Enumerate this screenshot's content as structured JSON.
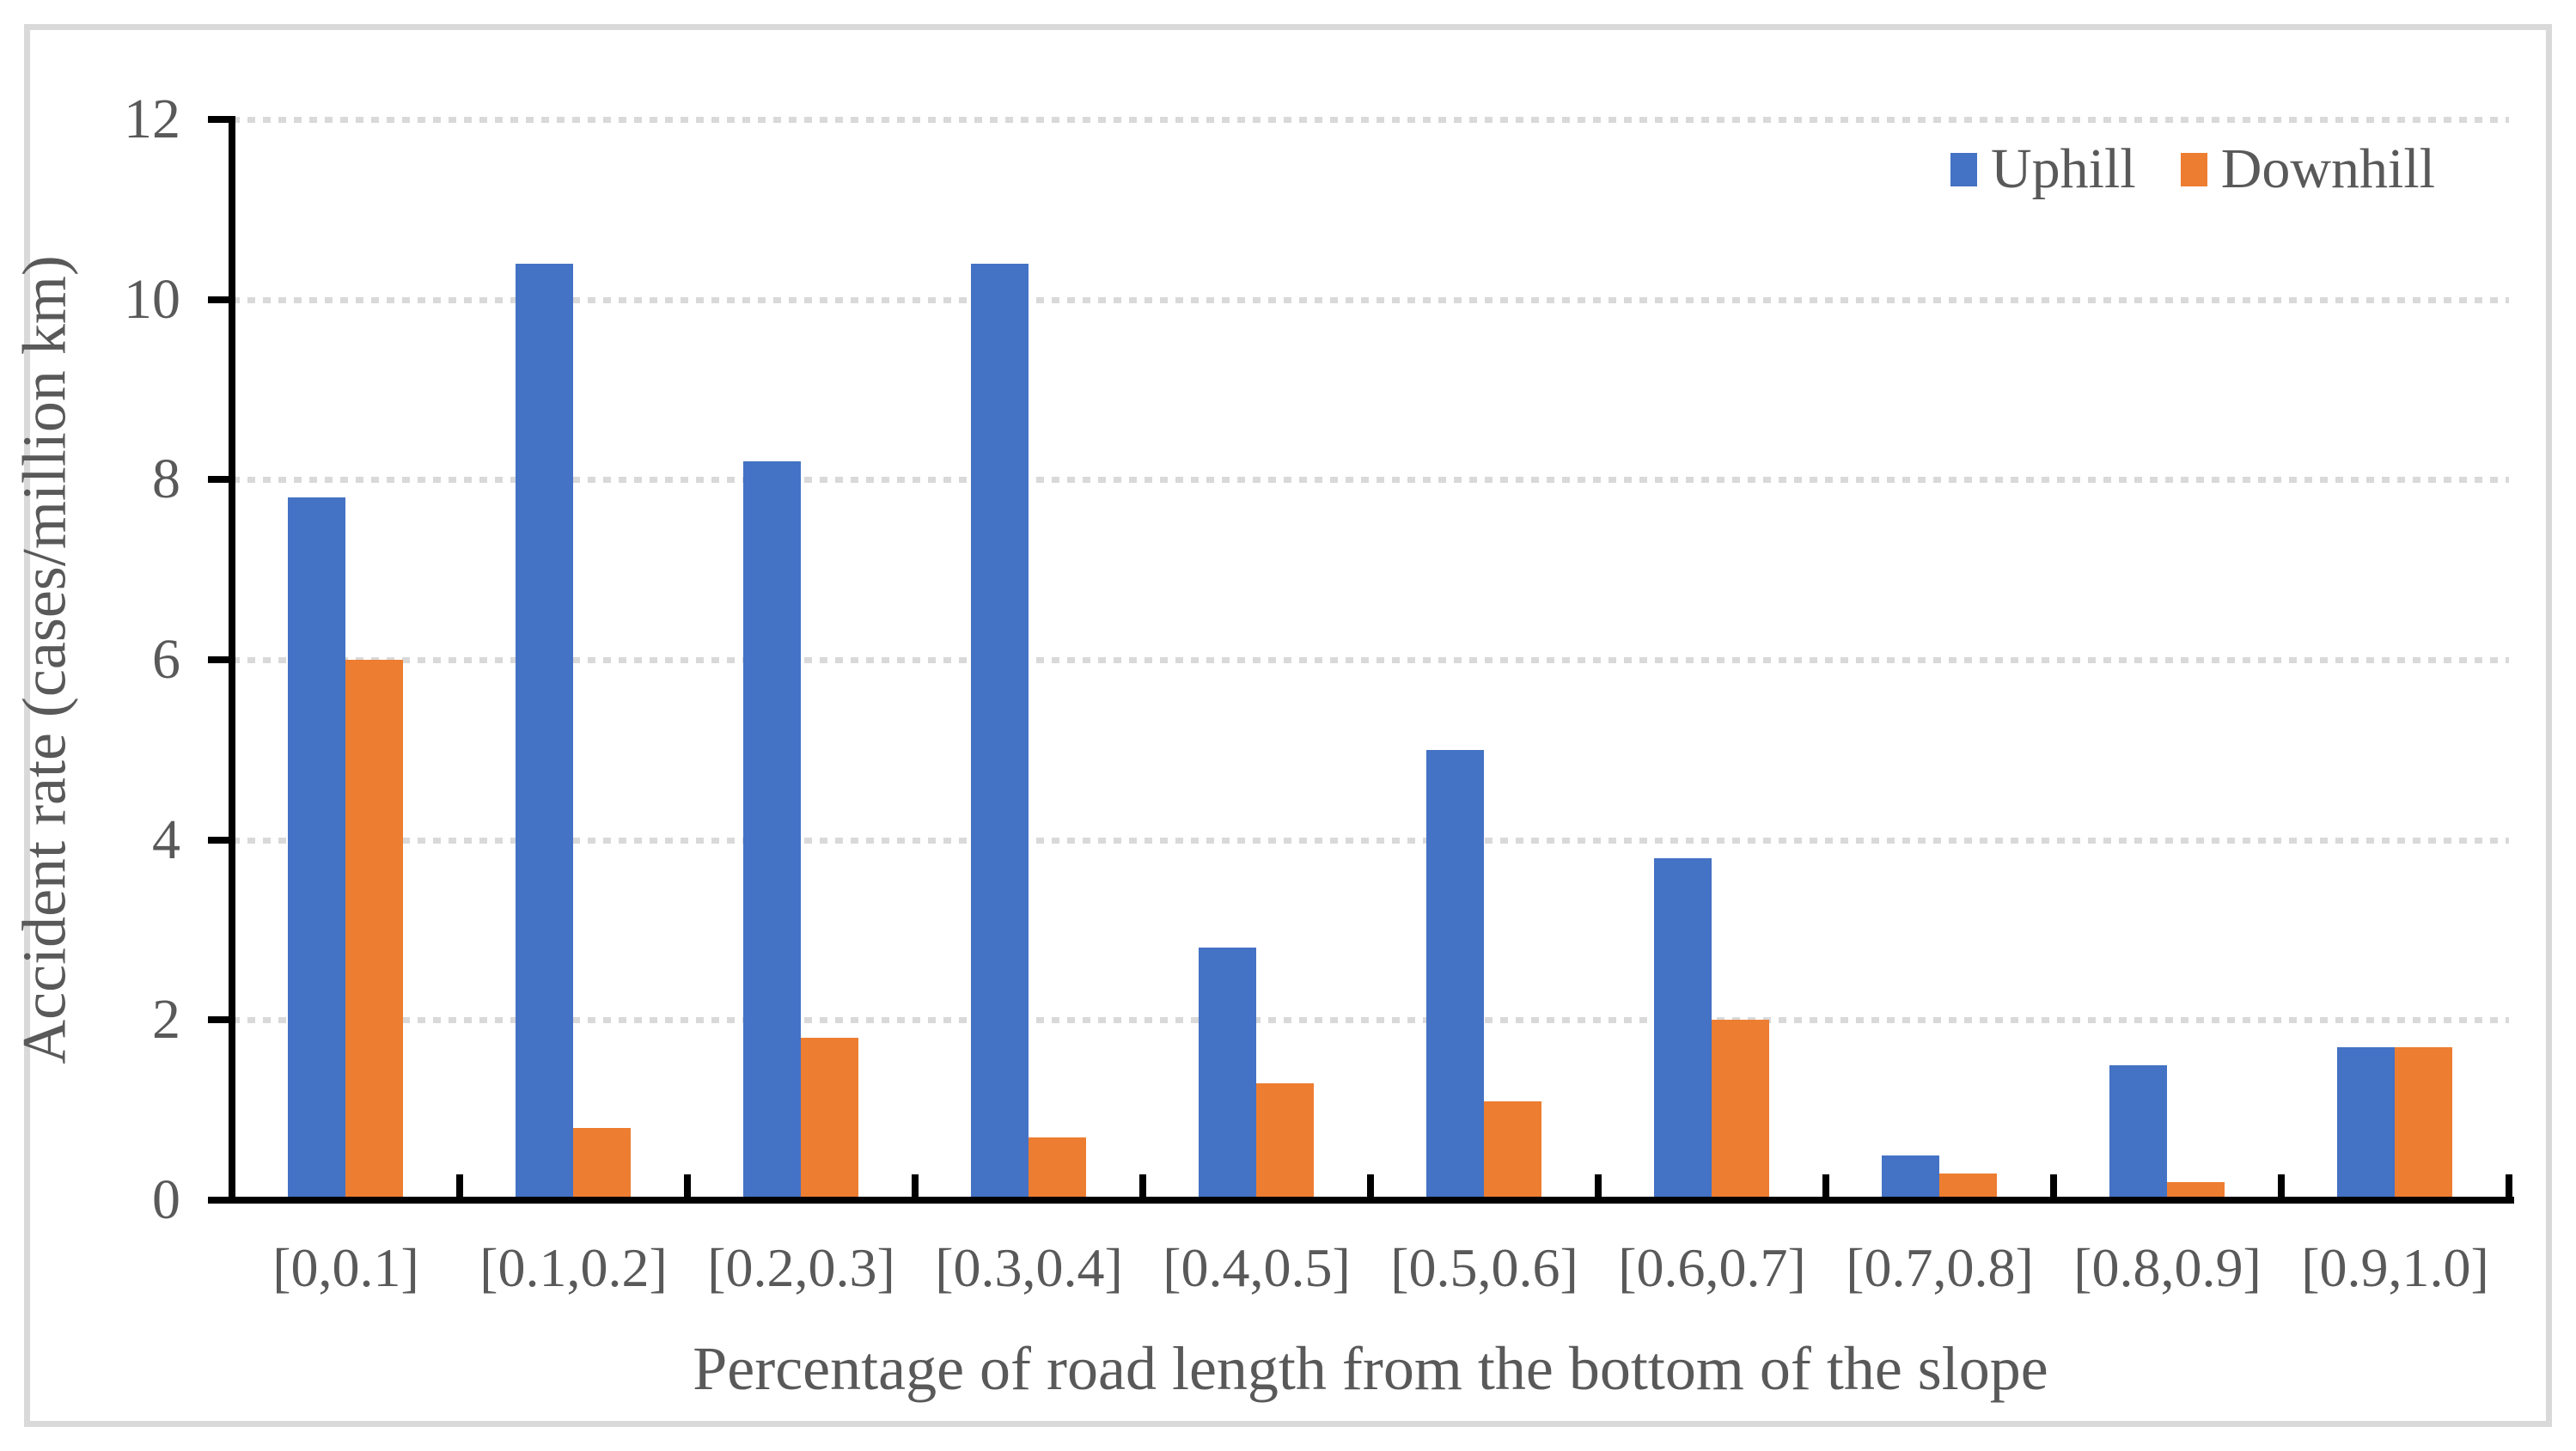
{
  "chart_data": {
    "type": "bar",
    "title": "",
    "categories": [
      "[0,0.1]",
      "[0.1,0.2]",
      "[0.2,0.3]",
      "[0.3,0.4]",
      "[0.4,0.5]",
      "[0.5,0.6]",
      "[0.6,0.7]",
      "[0.7,0.8]",
      "[0.8,0.9]",
      "[0.9,1.0]"
    ],
    "series": [
      {
        "name": "Uphill",
        "color": "#4472C4",
        "values": [
          7.8,
          10.4,
          8.2,
          10.4,
          2.8,
          5.0,
          3.8,
          0.5,
          1.5,
          1.7
        ]
      },
      {
        "name": "Downhill",
        "color": "#ED7D31",
        "values": [
          6.0,
          0.8,
          1.8,
          0.7,
          1.3,
          1.1,
          2.0,
          0.3,
          0.2,
          1.7
        ]
      }
    ],
    "xlabel": "Percentage of road length from the bottom of the slope",
    "ylabel": "Accident rate (cases/million km)",
    "ylim": [
      0,
      12
    ],
    "ytick_interval": 2,
    "ytick_labels": [
      "0",
      "2",
      "4",
      "6",
      "8",
      "10",
      "12"
    ],
    "grid": "horizontal-dotted",
    "legend_position": "top-right"
  },
  "colors": {
    "uphill": "#4472C4",
    "downhill": "#ED7D31",
    "axis": "#000000",
    "text": "#595959",
    "gridline": "#D9D9D9",
    "border": "#D9D9D9",
    "background": "#FFFFFF"
  }
}
